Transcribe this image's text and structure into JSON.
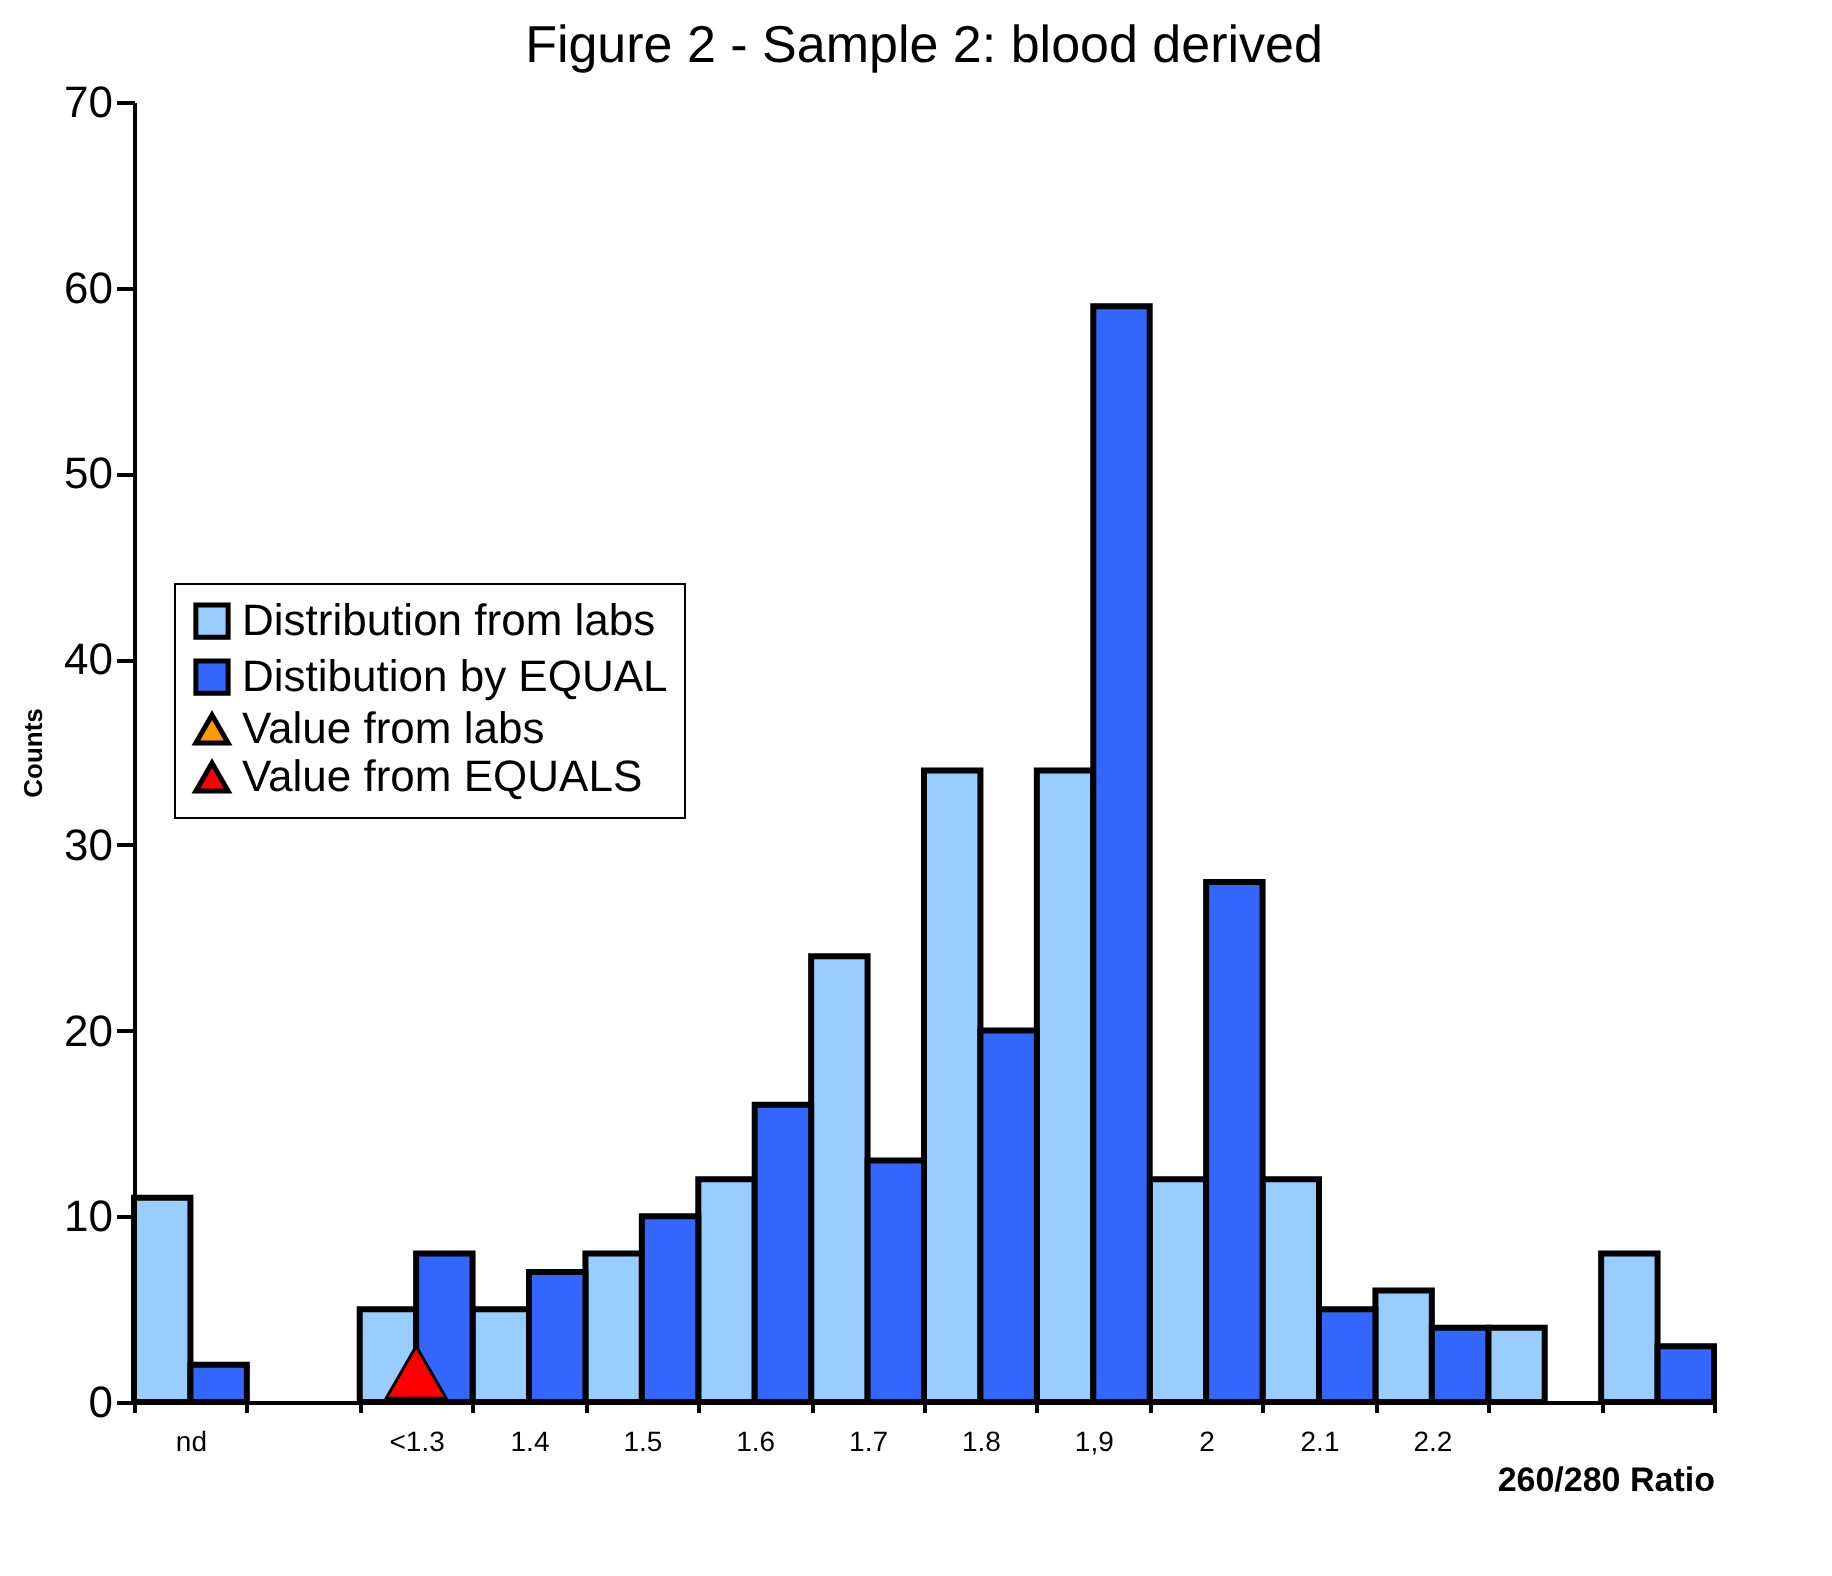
{
  "chart_data": {
    "type": "bar",
    "title": "Figure 2 - Sample 2: blood derived",
    "xlabel": "260/280 Ratio",
    "ylabel": "Counts",
    "categories": [
      "nd",
      null,
      "<1.3",
      "1.4",
      "1.5",
      "1.6",
      "1.7",
      "1.8",
      "1,9",
      "2",
      "2.1",
      "2.2",
      null,
      null
    ],
    "series": [
      {
        "name": "Distribution from labs",
        "color": "#99ccff",
        "values": [
          11,
          null,
          5,
          5,
          8,
          12,
          24,
          34,
          34,
          12,
          12,
          6,
          4,
          8
        ]
      },
      {
        "name": "Distibution by EQUAL",
        "color": "#3366ff",
        "values": [
          2,
          null,
          8,
          7,
          10,
          16,
          13,
          20,
          59,
          28,
          5,
          4,
          null,
          3
        ]
      },
      {
        "name": "Value from labs",
        "type": "scatter",
        "color": "#ff9900",
        "marker": "triangle",
        "x": [
          "<1.3"
        ],
        "values": [
          null
        ]
      },
      {
        "name": "Value from EQUALS",
        "type": "scatter",
        "color": "#ff0000",
        "marker": "triangle",
        "x": [
          "<1.3"
        ],
        "values": [
          1.6
        ]
      }
    ],
    "ylim": [
      0,
      70
    ],
    "yticks": [
      0,
      10,
      20,
      30,
      40,
      50,
      60,
      70
    ],
    "grid": false,
    "legend": "left"
  }
}
